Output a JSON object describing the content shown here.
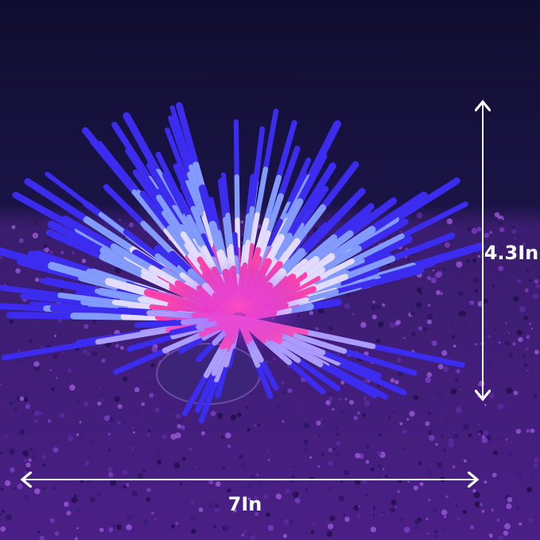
{
  "dimensions": {
    "height": "4.3In",
    "width": "7In"
  }
}
